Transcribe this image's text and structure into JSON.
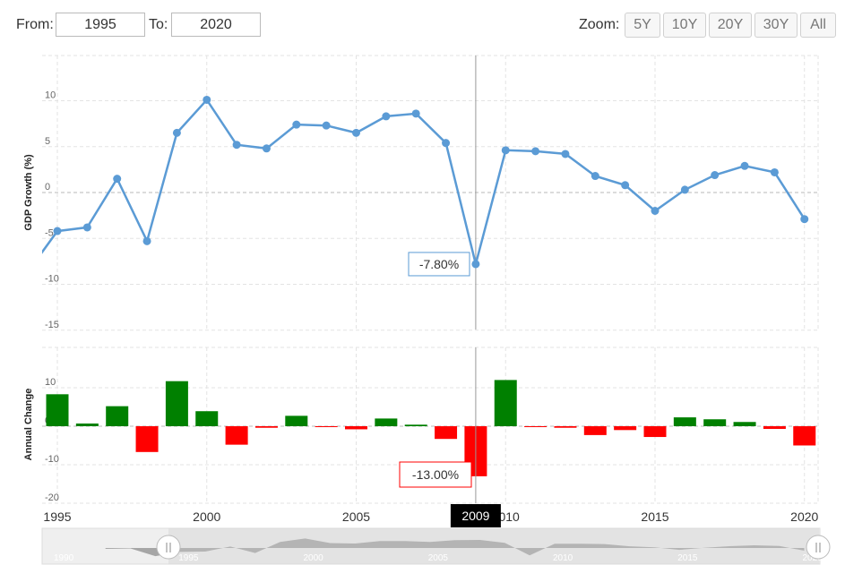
{
  "range": {
    "from_label": "From:",
    "from_value": "1995",
    "to_label": "To:",
    "to_value": "2020"
  },
  "zoom": {
    "label": "Zoom:",
    "buttons": [
      "5Y",
      "10Y",
      "20Y",
      "30Y",
      "All"
    ]
  },
  "colors": {
    "line": "#5b9bd5",
    "positive": "#008000",
    "negative": "#ff0000"
  },
  "chart_data": [
    {
      "type": "line",
      "title": "",
      "ylabel": "GDP Growth (%)",
      "ylim": [
        -15,
        15
      ],
      "yticks": [
        -15,
        -10,
        -5,
        0,
        5,
        10
      ],
      "x": [
        1994,
        1995,
        1996,
        1997,
        1998,
        1999,
        2000,
        2001,
        2002,
        2003,
        2004,
        2005,
        2006,
        2007,
        2008,
        2009,
        2010,
        2011,
        2012,
        2013,
        2014,
        2015,
        2016,
        2017,
        2018,
        2019,
        2020
      ],
      "values": [
        -8.7,
        -4.2,
        -3.8,
        1.5,
        -5.3,
        6.5,
        10.1,
        5.2,
        4.8,
        7.4,
        7.3,
        6.5,
        8.3,
        8.6,
        5.4,
        -7.8,
        4.6,
        4.5,
        4.2,
        1.8,
        0.8,
        -2.0,
        0.3,
        1.9,
        2.9,
        2.2,
        -2.9
      ],
      "tooltip": "-7.80%"
    },
    {
      "type": "bar",
      "ylabel": "Annual Change",
      "ylim": [
        -20,
        20
      ],
      "yticks": [
        -20,
        -10,
        0,
        10
      ],
      "x": [
        1995,
        1996,
        1997,
        1998,
        1999,
        2000,
        2001,
        2002,
        2003,
        2004,
        2005,
        2006,
        2007,
        2008,
        2009,
        2010,
        2011,
        2012,
        2013,
        2014,
        2015,
        2016,
        2017,
        2018,
        2019,
        2020
      ],
      "values": [
        8.3,
        0.7,
        5.2,
        -6.7,
        11.7,
        3.9,
        -4.8,
        -0.4,
        2.7,
        -0.2,
        -0.8,
        2.0,
        0.4,
        -3.3,
        -13.0,
        12.0,
        -0.1,
        -0.4,
        -2.3,
        -1.0,
        -2.8,
        2.3,
        1.8,
        1.1,
        -0.7,
        -5.0
      ],
      "tooltip": "-13.00%"
    }
  ],
  "xaxis": {
    "ticks": [
      "1995",
      "2000",
      "2005",
      "2010",
      "2015",
      "2020"
    ],
    "crosshair_label": "2009"
  },
  "navigator": {
    "ticks": [
      "1990",
      "1995",
      "2000",
      "2005",
      "2010",
      "2015",
      "2020"
    ],
    "values": [
      -1.0,
      -0.5,
      -8.7,
      -4.2,
      -3.8,
      1.5,
      -5.3,
      6.5,
      10.1,
      5.2,
      4.8,
      7.4,
      7.3,
      6.5,
      8.3,
      8.6,
      5.4,
      -7.8,
      4.6,
      4.5,
      4.2,
      1.8,
      0.8,
      -2.0,
      0.3,
      1.9,
      2.9,
      2.2,
      -2.9
    ],
    "start_year": 1992
  }
}
